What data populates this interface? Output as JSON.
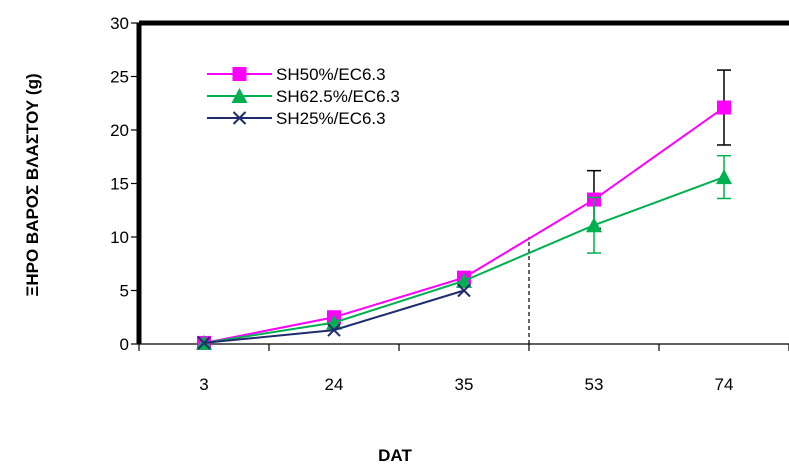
{
  "chart_data": {
    "type": "line",
    "categories": [
      "3",
      "24",
      "35",
      "53",
      "74"
    ],
    "xlabel": "DAT",
    "ylabel": "ΞΗΡΟ ΒΑΡΟΣ ΒΛΑΣΤΟΥ (g)",
    "ylim": [
      0,
      30
    ],
    "yticks": [
      0,
      5,
      10,
      15,
      20,
      25,
      30
    ],
    "legend_position": "top-left",
    "grid": false,
    "series": [
      {
        "name": "SH50%/EC6.3",
        "color": "#ff00ff",
        "marker": "square",
        "values": [
          0.1,
          2.5,
          6.2,
          13.5,
          22.1
        ],
        "error": [
          null,
          null,
          null,
          2.7,
          3.5
        ]
      },
      {
        "name": "SH62.5%/EC6.3",
        "color": "#00b050",
        "marker": "triangle",
        "values": [
          0.1,
          2.0,
          5.9,
          11.1,
          15.6
        ],
        "error": [
          null,
          null,
          null,
          2.6,
          2.0
        ]
      },
      {
        "name": "SH25%/EC6.3",
        "color": "#1f2d6e",
        "marker": "x",
        "values": [
          0.1,
          1.3,
          5.0,
          null,
          null
        ],
        "error": [
          null,
          null,
          null,
          null,
          null
        ]
      }
    ]
  }
}
